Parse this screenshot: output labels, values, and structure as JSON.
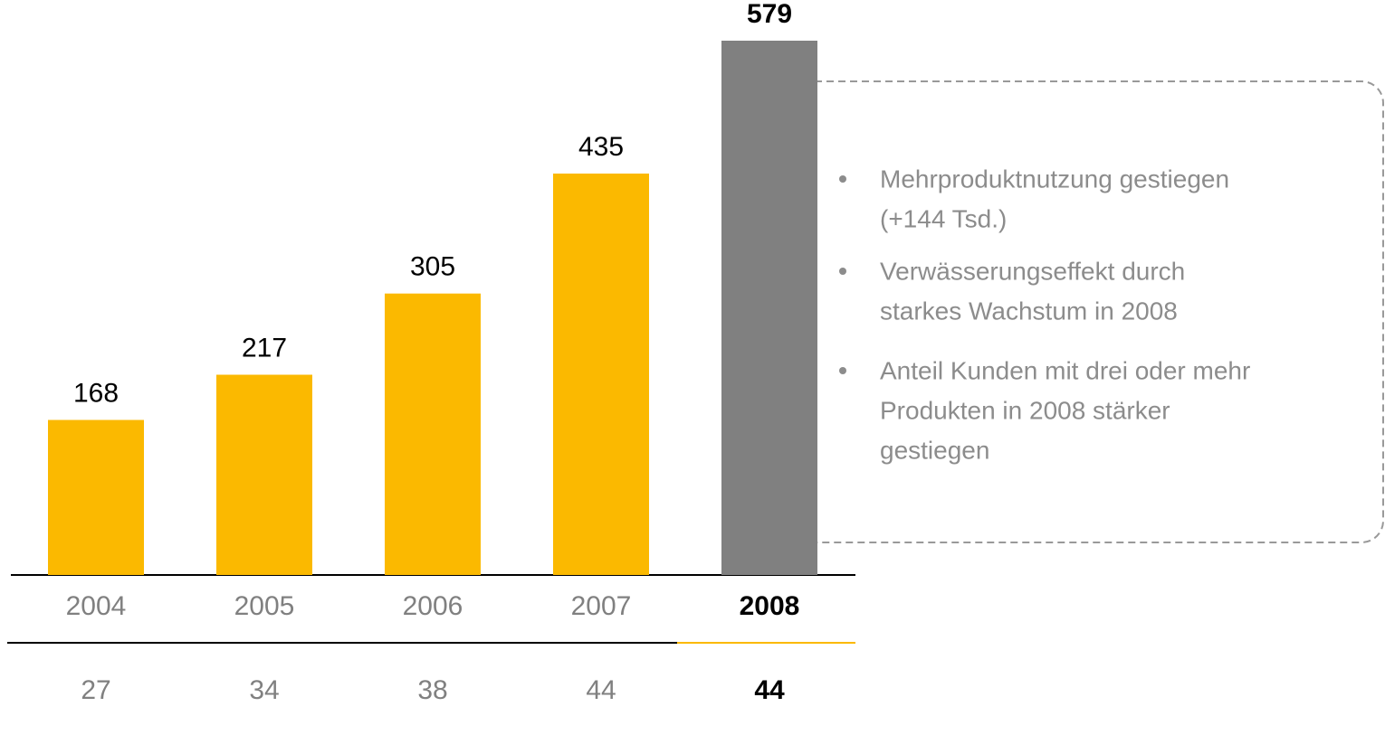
{
  "chart_data": {
    "type": "bar",
    "categories": [
      "2004",
      "2005",
      "2006",
      "2007",
      "2008"
    ],
    "values": [
      168,
      217,
      305,
      435,
      579
    ],
    "colors": [
      "#fbb900",
      "#fbb900",
      "#fbb900",
      "#fbb900",
      "#808080"
    ],
    "secondary_values": [
      27,
      34,
      38,
      44,
      44
    ],
    "bullets": [
      [
        "Mehrproduktnutzung gestiegen",
        "(+144 Tsd.)"
      ],
      [
        "Verwässerungseffekt durch",
        "starkes Wachstum in 2008"
      ],
      [
        "Anteil Kunden mit drei oder mehr",
        "Produkten in 2008 stärker",
        "gestiegen"
      ]
    ]
  }
}
